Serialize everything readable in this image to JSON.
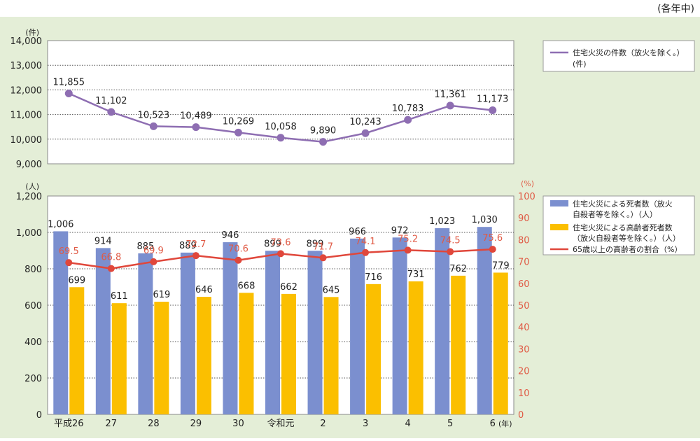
{
  "note": "(各年中)",
  "colors": {
    "panel_bg": "#e4eed7",
    "purple": "#8e6eb2",
    "blue": "#7b8fcf",
    "yellow": "#fbbf00",
    "red": "#e0473b",
    "red_text": "#e05a45",
    "grid": "#555555"
  },
  "chart_data": [
    {
      "type": "line",
      "categories": [
        "平成26",
        "27",
        "28",
        "29",
        "30",
        "令和元",
        "2",
        "3",
        "4",
        "5",
        "6"
      ],
      "series": [
        {
          "name": "住宅火災の件数（放火を除く。）",
          "values": [
            11855,
            11102,
            10523,
            10489,
            10269,
            10058,
            9890,
            10243,
            10783,
            11361,
            11173
          ]
        }
      ],
      "labels": [
        "11,855",
        "11,102",
        "10,523",
        "10,489",
        "10,269",
        "10,058",
        "9,890",
        "10,243",
        "10,783",
        "11,361",
        "11,173"
      ],
      "ylabel": "(件)",
      "ylim": [
        9000,
        14000
      ],
      "yticks": [
        9000,
        10000,
        11000,
        12000,
        13000,
        14000
      ],
      "ytick_labels": [
        "9,000",
        "10,000",
        "11,000",
        "12,000",
        "13,000",
        "14,000"
      ],
      "legend": [
        "住宅火災の件数（放火を除く。）",
        "(件)"
      ],
      "legend_position": "right",
      "grid": true
    },
    {
      "type": "bar",
      "categories": [
        "平成26",
        "27",
        "28",
        "29",
        "30",
        "令和元",
        "2",
        "3",
        "4",
        "5",
        "6"
      ],
      "xlabel_unit": "(年)",
      "series": [
        {
          "name": "住宅火災による死者数（放火自殺者等を除く。）（人）",
          "values": [
            1006,
            914,
            885,
            889,
            946,
            899,
            899,
            966,
            972,
            1023,
            1030
          ],
          "labels": [
            "1,006",
            "914",
            "885",
            "889",
            "946",
            "899",
            "899",
            "966",
            "972",
            "1,023",
            "1,030"
          ]
        },
        {
          "name": "住宅火災による高齢者死者数（放火自殺者等を除く。）（人）",
          "values": [
            699,
            611,
            619,
            646,
            668,
            662,
            645,
            716,
            731,
            762,
            779
          ],
          "labels": [
            "699",
            "611",
            "619",
            "646",
            "668",
            "662",
            "645",
            "716",
            "731",
            "762",
            "779"
          ]
        },
        {
          "name": "65歳以上の高齢者の割合（%）",
          "type": "line",
          "axis": "right",
          "values": [
            69.5,
            66.8,
            69.9,
            72.7,
            70.6,
            73.6,
            71.7,
            74.1,
            75.2,
            74.5,
            75.6
          ],
          "labels": [
            "69.5",
            "66.8",
            "69.9",
            "72.7",
            "70.6",
            "73.6",
            "71.7",
            "74.1",
            "75.2",
            "74.5",
            "75.6"
          ]
        }
      ],
      "ylabel_left": "(人)",
      "ylim_left": [
        0,
        1200
      ],
      "yticks_left": [
        0,
        200,
        400,
        600,
        800,
        1000,
        1200
      ],
      "ytick_labels_left": [
        "0",
        "200",
        "400",
        "600",
        "800",
        "1,000",
        "1,200"
      ],
      "ylabel_right": "(%)",
      "ylim_right": [
        0,
        100
      ],
      "yticks_right": [
        0,
        10,
        20,
        30,
        40,
        50,
        60,
        70,
        80,
        90,
        100
      ],
      "legend": [
        [
          "住宅火災による死者数（放火",
          "自殺者等を除く。）（人）"
        ],
        [
          "住宅火災による高齢者死者数",
          "（放火自殺者等を除く。）（人）"
        ],
        [
          "65歳以上の高齢者の割合（%）"
        ]
      ],
      "legend_position": "right",
      "grid": true
    }
  ]
}
